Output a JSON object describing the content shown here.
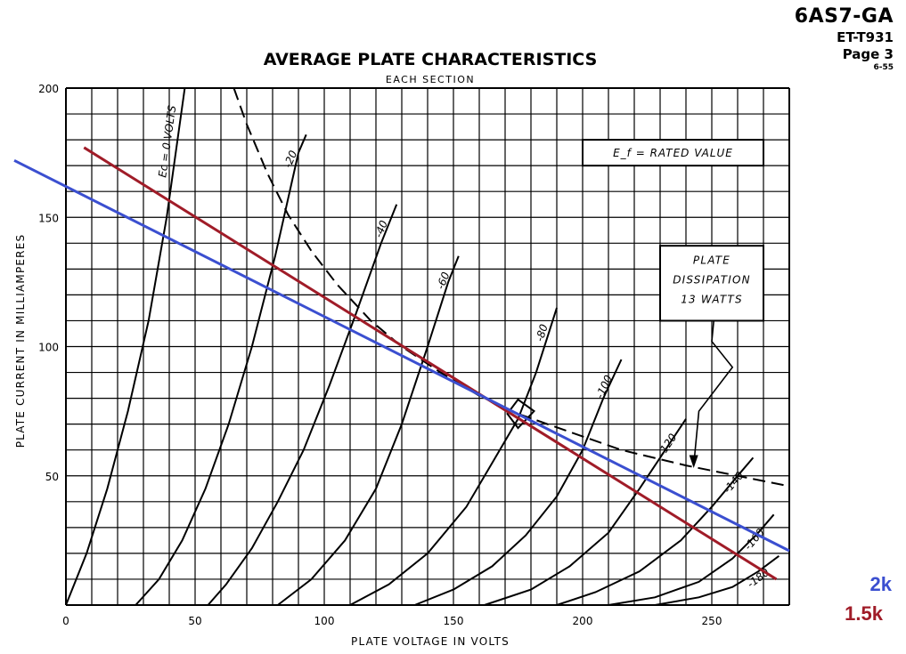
{
  "header": {
    "tube_type": "6AS7-GA",
    "bulletin": "ET-T931",
    "page": "Page 3",
    "date": "6-55"
  },
  "chart_data": {
    "type": "line",
    "title": "AVERAGE PLATE CHARACTERISTICS",
    "subtitle": "EACH SECTION",
    "xlabel": "PLATE VOLTAGE IN VOLTS",
    "ylabel": "PLATE CURRENT IN MILLIAMPERES",
    "xlim": [
      0,
      280
    ],
    "ylim": [
      0,
      200
    ],
    "x_ticks": [
      "0",
      "50",
      "100",
      "150",
      "200",
      "250"
    ],
    "y_ticks": [
      "50",
      "100",
      "150",
      "200"
    ],
    "grid": true,
    "grid_step": {
      "x": 10,
      "y": 10
    },
    "annotations": {
      "ef_box": "E_f = RATED VALUE",
      "dissipation_box": [
        "PLATE",
        "DISSIPATION",
        "13 WATTS"
      ]
    },
    "grid_curves": [
      {
        "name": "Ec = 0",
        "label": "Ec = 0 VOLTS",
        "points": [
          [
            0,
            0
          ],
          [
            8,
            20
          ],
          [
            16,
            45
          ],
          [
            24,
            75
          ],
          [
            32,
            110
          ],
          [
            39,
            150
          ],
          [
            46,
            200
          ]
        ]
      },
      {
        "name": "-20",
        "label": "-20",
        "points": [
          [
            27,
            0
          ],
          [
            36,
            10
          ],
          [
            45,
            25
          ],
          [
            54,
            45
          ],
          [
            63,
            70
          ],
          [
            72,
            100
          ],
          [
            81,
            135
          ],
          [
            90,
            175
          ],
          [
            93,
            182
          ]
        ]
      },
      {
        "name": "-40",
        "label": "-40",
        "points": [
          [
            55,
            0
          ],
          [
            62,
            8
          ],
          [
            72,
            22
          ],
          [
            82,
            40
          ],
          [
            92,
            60
          ],
          [
            102,
            85
          ],
          [
            112,
            112
          ],
          [
            122,
            140
          ],
          [
            128,
            155
          ]
        ]
      },
      {
        "name": "-60",
        "label": "-60",
        "points": [
          [
            82,
            0
          ],
          [
            95,
            10
          ],
          [
            108,
            25
          ],
          [
            120,
            45
          ],
          [
            130,
            70
          ],
          [
            140,
            100
          ],
          [
            148,
            125
          ],
          [
            152,
            135
          ]
        ]
      },
      {
        "name": "-80",
        "label": "-80",
        "points": [
          [
            110,
            0
          ],
          [
            125,
            8
          ],
          [
            140,
            20
          ],
          [
            155,
            38
          ],
          [
            165,
            55
          ],
          [
            175,
            72
          ],
          [
            182,
            90
          ],
          [
            190,
            115
          ]
        ]
      },
      {
        "name": "-100",
        "label": "-100",
        "points": [
          [
            135,
            0
          ],
          [
            150,
            6
          ],
          [
            165,
            15
          ],
          [
            178,
            27
          ],
          [
            190,
            42
          ],
          [
            200,
            60
          ],
          [
            208,
            80
          ],
          [
            215,
            95
          ]
        ]
      },
      {
        "name": "-120",
        "label": "-120",
        "points": [
          [
            162,
            0
          ],
          [
            180,
            6
          ],
          [
            195,
            15
          ],
          [
            210,
            28
          ],
          [
            222,
            45
          ],
          [
            232,
            60
          ],
          [
            240,
            72
          ]
        ]
      },
      {
        "name": "-140",
        "label": "-140",
        "points": [
          [
            190,
            0
          ],
          [
            205,
            5
          ],
          [
            222,
            13
          ],
          [
            238,
            25
          ],
          [
            250,
            38
          ],
          [
            260,
            50
          ],
          [
            266,
            57
          ]
        ]
      },
      {
        "name": "-160",
        "label": "-160",
        "points": [
          [
            210,
            0
          ],
          [
            228,
            3
          ],
          [
            245,
            9
          ],
          [
            258,
            18
          ],
          [
            268,
            28
          ],
          [
            274,
            35
          ]
        ]
      },
      {
        "name": "-180",
        "label": "-180",
        "points": [
          [
            228,
            0
          ],
          [
            245,
            3
          ],
          [
            258,
            7
          ],
          [
            268,
            13
          ],
          [
            276,
            19
          ]
        ]
      }
    ],
    "dissipation_curve": {
      "name": "Plate dissipation 13 W",
      "points": [
        [
          65,
          200
        ],
        [
          70,
          186
        ],
        [
          78,
          167
        ],
        [
          86,
          151
        ],
        [
          95,
          137
        ],
        [
          105,
          124
        ],
        [
          118,
          110
        ],
        [
          130,
          100
        ],
        [
          145,
          90
        ],
        [
          160,
          81
        ],
        [
          175,
          74
        ],
        [
          195,
          67
        ],
        [
          215,
          60
        ],
        [
          240,
          54
        ],
        [
          260,
          50
        ],
        [
          280,
          46
        ]
      ]
    },
    "load_lines": [
      {
        "name": "1.5k",
        "label": "1.5k",
        "color": "#a01c28",
        "points": [
          [
            7,
            177
          ],
          [
            275,
            10
          ]
        ]
      },
      {
        "name": "2k",
        "label": "2k",
        "color": "#3b4fd0",
        "points": [
          [
            -20,
            172
          ],
          [
            280,
            21
          ]
        ]
      }
    ],
    "operating_point": {
      "x": 175,
      "y": 74
    }
  }
}
